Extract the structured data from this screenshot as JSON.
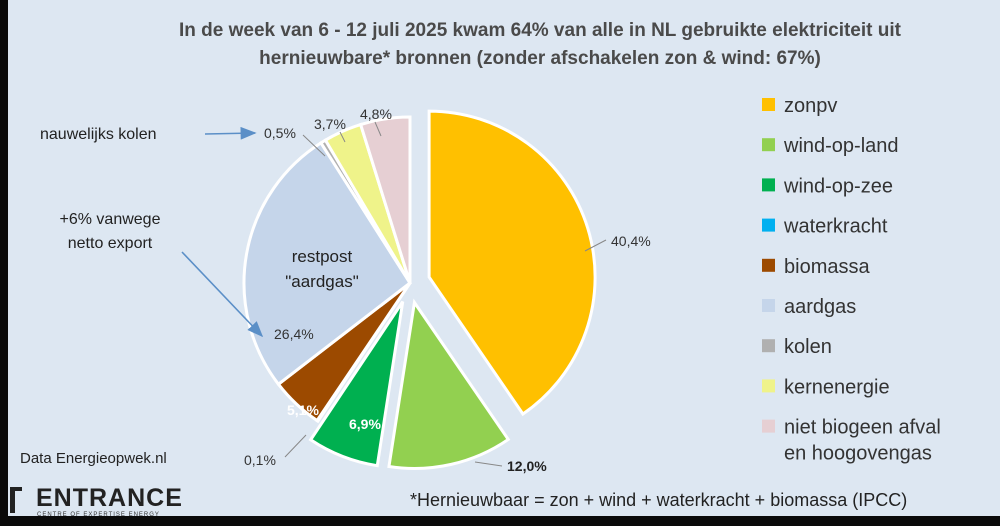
{
  "chart_data": {
    "type": "pie",
    "title_line1": "In de week van 6 - 12 juli 2025 kwam 64% van alle in NL gebruikte elektriciteit uit",
    "title_line2": "hernieuwbare* bronnen  (zonder afschakelen zon & wind: 67%)",
    "slices": [
      {
        "name": "zonpv",
        "value": 40.4,
        "label": "40,4%",
        "color": "#FFC000"
      },
      {
        "name": "wind-op-land",
        "value": 12.0,
        "label": "12,0%",
        "color": "#92D050"
      },
      {
        "name": "wind-op-zee",
        "value": 6.9,
        "label": "6,9%",
        "color": "#00B050"
      },
      {
        "name": "waterkracht",
        "value": 0.1,
        "label": "0,1%",
        "color": "#00B0F0"
      },
      {
        "name": "biomassa",
        "value": 5.1,
        "label": "5,1%",
        "color": "#9C4A00"
      },
      {
        "name": "aardgas",
        "value": 26.4,
        "label": "26,4%",
        "color": "#C5D5EA"
      },
      {
        "name": "kolen",
        "value": 0.5,
        "label": "0,5%",
        "color": "#B0B0B0"
      },
      {
        "name": "kernenergie",
        "value": 3.7,
        "label": "3,7%",
        "color": "#EFF38A"
      },
      {
        "name": "niet biogeen afval en hoogovengas",
        "value": 4.8,
        "label": "4,8%",
        "color": "#E6CFD3"
      }
    ],
    "legend": [
      {
        "label": "zonpv",
        "color": "#FFC000"
      },
      {
        "label": "wind-op-land",
        "color": "#92D050"
      },
      {
        "label": "wind-op-zee",
        "color": "#00B050"
      },
      {
        "label": "waterkracht",
        "color": "#00B0F0"
      },
      {
        "label": "biomassa",
        "color": "#9C4A00"
      },
      {
        "label": "aardgas",
        "color": "#C5D5EA"
      },
      {
        "label": "kolen",
        "color": "#B0B0B0"
      },
      {
        "label": "kernenergie",
        "color": "#EFF38A"
      },
      {
        "label_line1": "niet biogeen afval",
        "label_line2": "en hoogovengas",
        "color": "#E6CFD3"
      }
    ],
    "legend_placement": "right",
    "annotations": {
      "kolen_note": "nauwelijks kolen",
      "export_line1": "+6% vanwege",
      "export_line2": "netto export",
      "restpost_line1": "restpost",
      "restpost_line2": "\"aardgas\""
    }
  },
  "footer": {
    "source": "Data Energieopwek.nl",
    "footnote": "*Hernieuwbaar = zon + wind + waterkracht + biomassa (IPCC)",
    "logo_text": "ENTRANCE",
    "logo_subtext": "CENTRE OF EXPERTISE ENERGY"
  },
  "colors": {
    "plot_background": "#DDE7F2",
    "frame_background": "#0a0a0a"
  }
}
